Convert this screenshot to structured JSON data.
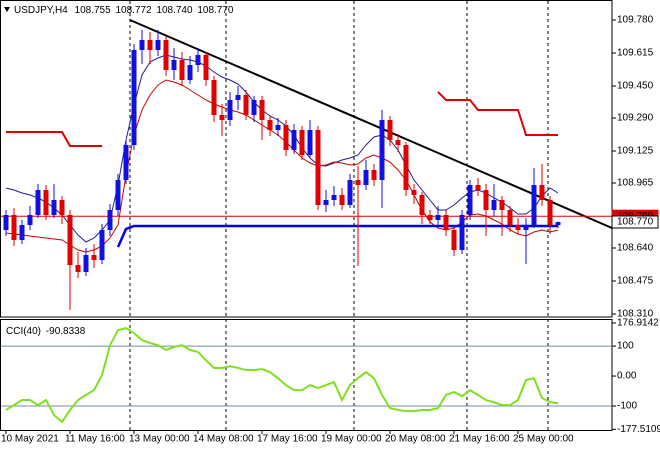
{
  "chart_data": [
    {
      "type": "candlestick",
      "title": "USDJPY,H4",
      "header_values": [
        "108.755",
        "108.772",
        "108.740",
        "108.770"
      ],
      "categories": [
        "10 May 2021",
        null,
        null,
        null,
        null,
        null,
        null,
        null,
        "11 May 16:00",
        null,
        null,
        null,
        null,
        null,
        null,
        null,
        "13 May 00:00",
        null,
        null,
        null,
        null,
        null,
        null,
        null,
        "14 May 08:00",
        null,
        null,
        null,
        null,
        null,
        null,
        null,
        "17 May 16:00",
        null,
        null,
        null,
        null,
        null,
        null,
        null,
        "19 May 00:00",
        null,
        null,
        null,
        null,
        null,
        null,
        null,
        "20 May 08:00",
        null,
        null,
        null,
        null,
        null,
        null,
        null,
        "21 May 16:00",
        null,
        null,
        null,
        null,
        null,
        null,
        null,
        "25 May 00:00",
        null,
        null,
        null,
        null,
        null
      ],
      "open": [
        108.73,
        108.805,
        108.68,
        108.755,
        108.805,
        108.93,
        108.805,
        108.88,
        108.805,
        108.555,
        108.52,
        108.605,
        108.58,
        108.73,
        108.83,
        108.98,
        109.155,
        109.63,
        109.68,
        109.63,
        109.68,
        109.53,
        109.58,
        109.48,
        109.555,
        109.605,
        109.48,
        109.305,
        109.28,
        109.38,
        109.405,
        109.305,
        109.38,
        109.28,
        109.23,
        109.255,
        109.13,
        109.23,
        109.105,
        109.23,
        108.855,
        108.88,
        108.905,
        108.855,
        108.98,
        108.955,
        109.03,
        108.98,
        109.28,
        109.18,
        109.155,
        108.93,
        108.905,
        108.805,
        108.78,
        108.805,
        108.73,
        108.63,
        108.805,
        108.955,
        108.93,
        108.83,
        108.88,
        108.83,
        108.755,
        108.73,
        108.755,
        108.955,
        108.88,
        108.755
      ],
      "high": [
        108.83,
        108.84,
        108.78,
        108.85,
        108.96,
        108.955,
        108.96,
        108.9,
        108.83,
        108.62,
        108.64,
        108.66,
        108.76,
        108.86,
        109.01,
        109.18,
        109.66,
        109.73,
        109.72,
        109.73,
        109.7,
        109.64,
        109.62,
        109.6,
        109.64,
        109.62,
        109.5,
        109.36,
        109.42,
        109.45,
        109.43,
        109.4,
        109.4,
        109.3,
        109.29,
        109.28,
        109.26,
        109.25,
        109.28,
        109.25,
        108.93,
        108.95,
        108.94,
        109.01,
        109.05,
        109.08,
        109.06,
        109.33,
        109.3,
        109.21,
        109.17,
        108.96,
        108.92,
        108.83,
        108.85,
        108.83,
        108.75,
        108.83,
        108.98,
        108.99,
        108.96,
        108.96,
        108.9,
        108.85,
        108.79,
        108.79,
        109.04,
        109.06,
        108.9,
        108.772
      ],
      "low": [
        108.7,
        108.65,
        108.66,
        108.73,
        108.79,
        108.78,
        108.79,
        108.76,
        108.33,
        108.49,
        108.5,
        108.54,
        108.56,
        108.7,
        108.8,
        108.96,
        109.13,
        109.56,
        109.56,
        109.6,
        109.5,
        109.48,
        109.45,
        109.46,
        109.52,
        109.45,
        109.27,
        109.2,
        109.25,
        109.33,
        109.28,
        109.27,
        109.18,
        109.2,
        109.2,
        109.1,
        109.11,
        109.08,
        109.09,
        108.83,
        108.82,
        108.85,
        108.83,
        108.84,
        108.55,
        108.93,
        108.95,
        108.84,
        109.15,
        109.12,
        108.9,
        108.86,
        108.76,
        108.76,
        108.75,
        108.7,
        108.6,
        108.61,
        108.78,
        108.9,
        108.7,
        108.8,
        108.7,
        108.72,
        108.71,
        108.56,
        108.74,
        108.85,
        108.71,
        108.74
      ],
      "close": [
        108.805,
        108.68,
        108.755,
        108.805,
        108.93,
        108.805,
        108.88,
        108.805,
        108.555,
        108.52,
        108.605,
        108.58,
        108.73,
        108.83,
        108.98,
        109.155,
        109.63,
        109.68,
        109.63,
        109.68,
        109.53,
        109.58,
        109.48,
        109.555,
        109.605,
        109.48,
        109.305,
        109.28,
        109.38,
        109.405,
        109.305,
        109.38,
        109.28,
        109.23,
        109.255,
        109.13,
        109.23,
        109.105,
        109.23,
        108.855,
        108.88,
        108.905,
        108.855,
        108.98,
        108.955,
        109.03,
        108.98,
        109.28,
        109.18,
        109.155,
        108.93,
        108.905,
        108.805,
        108.78,
        108.805,
        108.73,
        108.63,
        108.805,
        108.955,
        108.93,
        108.83,
        108.88,
        108.83,
        108.755,
        108.73,
        108.755,
        108.955,
        108.88,
        108.755,
        108.77
      ],
      "up_color": "#1010e0",
      "down_color": "#e00000",
      "ylim": [
        108.3,
        109.87
      ],
      "yticks": [
        {
          "value": 109.78,
          "label": "109.780"
        },
        109.615,
        {
          "value": 109.45,
          "label": "109.450"
        },
        {
          "value": 109.29,
          "label": "109.290"
        },
        109.125,
        108.965,
        {
          "value": 108.64,
          "label": "108.640"
        },
        108.475,
        {
          "value": 108.31,
          "label": "108.310"
        }
      ],
      "overlays": [
        {
          "color": "#1f1f8f",
          "width": 1,
          "values": [
            108.94,
            108.93,
            108.915,
            108.905,
            108.89,
            108.87,
            108.84,
            108.805,
            108.755,
            108.705,
            108.67,
            108.69,
            108.73,
            108.78,
            108.955,
            109.18,
            109.355,
            109.505,
            109.57,
            109.59,
            109.605,
            109.595,
            109.585,
            109.58,
            109.57,
            109.55,
            109.52,
            109.495,
            109.48,
            109.46,
            109.42,
            109.37,
            109.33,
            109.3,
            109.28,
            109.25,
            109.205,
            109.14,
            109.09,
            109.055,
            109.05,
            109.065,
            109.08,
            109.09,
            109.105,
            109.155,
            109.195,
            109.205,
            109.18,
            109.13,
            109.055,
            108.98,
            108.93,
            108.88,
            108.83,
            108.83,
            108.855,
            108.89,
            108.92,
            108.93,
            108.915,
            108.89,
            108.87,
            108.84,
            108.81,
            108.81,
            108.84,
            108.9,
            108.94,
            108.915
          ]
        },
        {
          "color": "#cc0000",
          "width": 1,
          "values": [
            108.715,
            108.71,
            108.705,
            108.7,
            108.695,
            108.69,
            108.685,
            108.68,
            108.655,
            108.63,
            108.62,
            108.63,
            108.65,
            108.69,
            108.755,
            109.005,
            109.205,
            109.33,
            109.405,
            109.455,
            109.48,
            109.47,
            109.455,
            109.43,
            109.405,
            109.38,
            109.36,
            109.345,
            109.33,
            109.32,
            109.305,
            109.28,
            109.255,
            109.23,
            109.205,
            109.17,
            109.13,
            109.09,
            109.065,
            109.05,
            109.055,
            109.07,
            109.065,
            109.055,
            109.06,
            109.09,
            109.105,
            109.09,
            109.07,
            109.03,
            108.98,
            108.905,
            108.83,
            108.77,
            108.74,
            108.73,
            108.74,
            108.77,
            108.805,
            108.81,
            108.8,
            108.78,
            108.76,
            108.73,
            108.71,
            108.7,
            108.72,
            108.73,
            108.72,
            108.73
          ]
        },
        {
          "color": "#e00000",
          "width": 2,
          "values": [
            109.22,
            109.22,
            109.22,
            109.22,
            109.22,
            109.22,
            109.22,
            109.22,
            109.15,
            109.15,
            109.15,
            109.15,
            109.15,
            null,
            null,
            null,
            null,
            null,
            null,
            null,
            null,
            null,
            null,
            null,
            null,
            null,
            null,
            null,
            null,
            null,
            null,
            null,
            null,
            null,
            null,
            null,
            null,
            null,
            null,
            null,
            null,
            null,
            null,
            null,
            null,
            null,
            null,
            null,
            null,
            null,
            null,
            null,
            null,
            null,
            109.42,
            109.38,
            109.38,
            109.38,
            109.38,
            109.33,
            109.33,
            109.33,
            109.33,
            109.33,
            109.33,
            109.205,
            109.205,
            109.205,
            109.205,
            109.205
          ]
        },
        {
          "color": "#0000ee",
          "width": 2.5,
          "values": [
            null,
            null,
            null,
            null,
            null,
            null,
            null,
            null,
            null,
            null,
            null,
            null,
            null,
            null,
            108.645,
            108.735,
            108.75,
            108.75,
            108.75,
            108.75,
            108.75,
            108.75,
            108.75,
            108.75,
            108.75,
            108.75,
            108.75,
            108.75,
            108.75,
            108.75,
            108.75,
            108.75,
            108.75,
            108.75,
            108.75,
            108.75,
            108.75,
            108.75,
            108.75,
            108.75,
            108.75,
            108.75,
            108.75,
            108.75,
            108.75,
            108.75,
            108.75,
            108.75,
            108.75,
            108.75,
            108.75,
            108.75,
            108.75,
            108.75,
            108.75,
            108.75,
            108.75,
            108.75,
            108.75,
            108.75,
            108.75,
            108.75,
            108.75,
            108.75,
            108.75,
            108.75,
            108.75,
            108.75,
            108.75,
            108.75
          ]
        }
      ],
      "price_lines": [
        {
          "value": 108.799,
          "color": "#e00000",
          "text_color": "#ffffff",
          "line": true
        },
        {
          "value": 108.77,
          "label": "108.770",
          "color": "#ffffff",
          "text_color": "#000000",
          "line": false
        }
      ]
    },
    {
      "type": "line",
      "title": "CCI(40)",
      "color": "#80e020",
      "values": [
        -113,
        -97,
        -80,
        -80,
        -97,
        -80,
        -130,
        -153,
        -113,
        -80,
        -63,
        -47,
        3,
        103,
        153,
        160,
        143,
        120,
        110,
        103,
        87,
        97,
        103,
        87,
        80,
        53,
        27,
        27,
        33,
        27,
        20,
        20,
        23,
        13,
        -7,
        -30,
        -47,
        -47,
        -30,
        -40,
        -30,
        -20,
        -80,
        -30,
        -7,
        13,
        -7,
        -63,
        -107,
        -113,
        -117,
        -117,
        -113,
        -113,
        -107,
        -63,
        -53,
        -67,
        -47,
        -63,
        -80,
        -87,
        -97,
        -97,
        -80,
        -13,
        -7,
        -73,
        -87,
        -90.8338
      ],
      "ylim": [
        -177.5109,
        176.9142
      ],
      "yticks": [
        176.9142,
        100,
        {
          "value": 0,
          "label": "0.00"
        },
        -100,
        -177.5109
      ],
      "levels": [
        100,
        -100
      ],
      "level_color": "#6f8fa8"
    }
  ]
}
